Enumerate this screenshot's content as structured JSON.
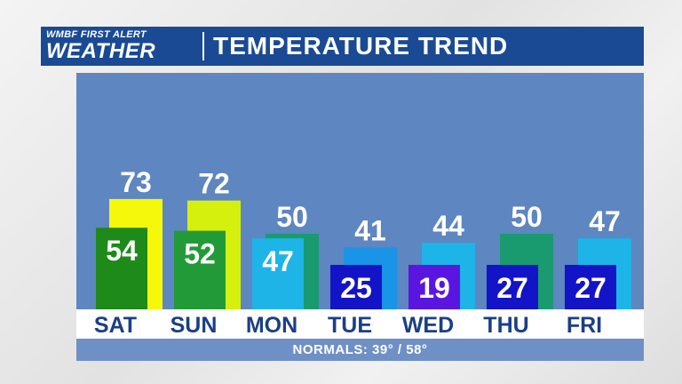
{
  "header": {
    "logo_line1": "WMBF FIRST ALERT",
    "logo_line2": "WEATHER",
    "title": "TEMPERATURE TREND"
  },
  "normals": {
    "label": "NORMALS:",
    "low": "39°",
    "separator": "/",
    "high": "58°"
  },
  "colors": {
    "header_bg": "#1a4a93",
    "panel_bg": "#5e86c0",
    "strip_bg": "#ffffff",
    "day_text": "#1a3f87"
  },
  "chart_data": {
    "type": "bar",
    "categories": [
      "SAT",
      "SUN",
      "MON",
      "TUE",
      "WED",
      "THU",
      "FRI"
    ],
    "series": [
      {
        "values": [
          73,
          72,
          50,
          41,
          44,
          50,
          47
        ],
        "colors": [
          "#f6f80c",
          "#d6f00e",
          "#1a9a6f",
          "#1994e6",
          "#1eb4e8",
          "#1a9a6f",
          "#1eb4e8"
        ]
      },
      {
        "values": [
          54,
          52,
          47,
          25,
          19,
          27,
          27
        ],
        "colors": [
          "#1e8a1a",
          "#239a38",
          "#1eb4e8",
          "#1313c8",
          "#5a16e0",
          "#1313c8",
          "#1313c8"
        ]
      }
    ],
    "ylim": [
      0,
      90
    ],
    "grid": false
  }
}
